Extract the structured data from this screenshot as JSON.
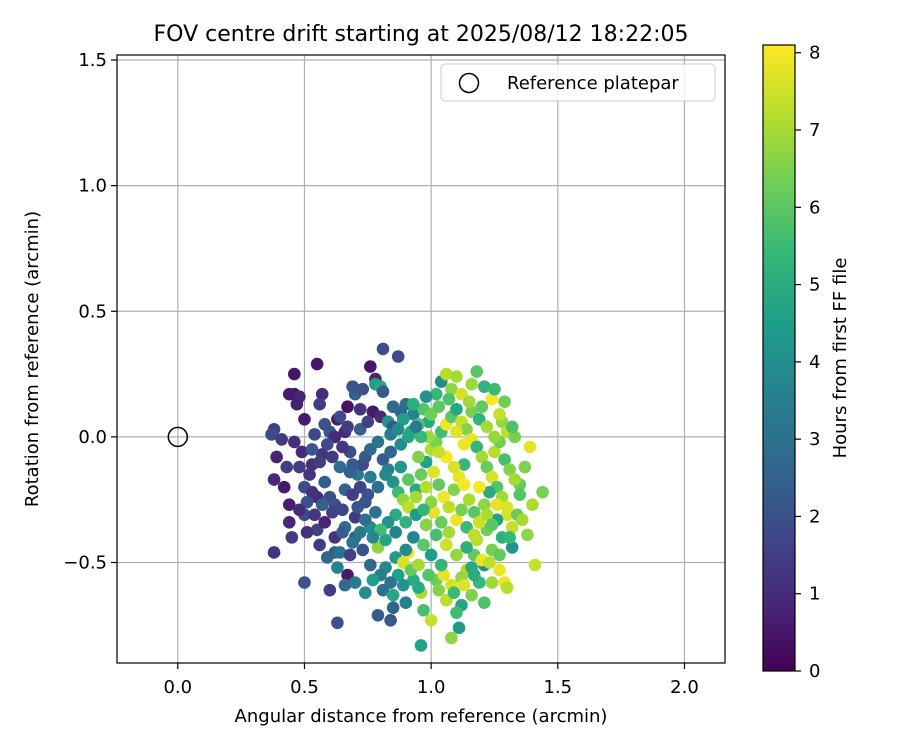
{
  "chart_data": {
    "type": "scatter",
    "title": "FOV centre drift starting at 2025/08/12 18:22:05",
    "xlabel": "Angular distance from reference (arcmin)",
    "ylabel": "Rotation from reference (arcmin)",
    "xlim": [
      -0.24,
      2.16
    ],
    "ylim": [
      -0.9,
      1.52
    ],
    "xticks": [
      0.0,
      0.5,
      1.0,
      1.5,
      2.0
    ],
    "xtick_labels": [
      "0.0",
      "0.5",
      "1.0",
      "1.5",
      "2.0"
    ],
    "yticks": [
      -0.5,
      0.0,
      0.5,
      1.0,
      1.5
    ],
    "ytick_labels": [
      "−0.5",
      "0.0",
      "0.5",
      "1.0",
      "1.5"
    ],
    "grid": true,
    "legend": {
      "position": "top-right",
      "entries": [
        "Reference platepar"
      ]
    },
    "reference_point": {
      "x": 0.0,
      "y": 0.0
    },
    "colorbar": {
      "label": "Hours from first FF file",
      "range": [
        0,
        8.1
      ],
      "ticks": [
        0,
        1,
        2,
        3,
        4,
        5,
        6,
        7,
        8
      ],
      "tick_labels": [
        "0",
        "1",
        "2",
        "3",
        "4",
        "5",
        "6",
        "7",
        "8"
      ],
      "colormap": "viridis"
    },
    "points": [
      [
        0.46,
        0.25,
        0.5
      ],
      [
        0.55,
        0.29,
        0.5
      ],
      [
        0.46,
        0.17,
        0.4
      ],
      [
        0.44,
        0.17,
        0.6
      ],
      [
        0.48,
        0.16,
        0.8
      ],
      [
        0.47,
        0.13,
        0.7
      ],
      [
        0.57,
        0.17,
        1.0
      ],
      [
        0.56,
        0.13,
        1.5
      ],
      [
        0.5,
        0.07,
        0.6
      ],
      [
        0.38,
        0.03,
        1.6
      ],
      [
        0.37,
        0.01,
        1.8
      ],
      [
        0.41,
        -0.01,
        1.4
      ],
      [
        0.39,
        -0.08,
        0.8
      ],
      [
        0.38,
        -0.17,
        0.9
      ],
      [
        0.42,
        -0.2,
        0.6
      ],
      [
        0.44,
        -0.34,
        0.9
      ],
      [
        0.45,
        -0.4,
        1.4
      ],
      [
        0.38,
        -0.46,
        1.2
      ],
      [
        0.44,
        -0.27,
        0.7
      ],
      [
        0.5,
        -0.31,
        1.8
      ],
      [
        0.54,
        -0.31,
        1.3
      ],
      [
        0.55,
        -0.37,
        1.6
      ],
      [
        0.51,
        -0.38,
        1.1
      ],
      [
        0.5,
        -0.2,
        1.9
      ],
      [
        0.48,
        -0.12,
        1.4
      ],
      [
        0.53,
        -0.11,
        1.1
      ],
      [
        0.57,
        -0.07,
        1.2
      ],
      [
        0.6,
        0.02,
        2.2
      ],
      [
        0.63,
        0.07,
        0.6
      ],
      [
        0.64,
        0.08,
        1.8
      ],
      [
        0.66,
        0.02,
        1.0
      ],
      [
        0.67,
        0.12,
        0.4
      ],
      [
        0.7,
        0.17,
        2.5
      ],
      [
        0.73,
        0.19,
        2.0
      ],
      [
        0.69,
        0.2,
        2.2
      ],
      [
        0.72,
        0.11,
        1.2
      ],
      [
        0.76,
        0.28,
        0.5
      ],
      [
        0.78,
        0.23,
        0.8
      ],
      [
        0.81,
        0.35,
        1.8
      ],
      [
        0.87,
        0.32,
        1.9
      ],
      [
        0.78,
        0.21,
        4.4
      ],
      [
        0.8,
        0.2,
        4.8
      ],
      [
        0.81,
        0.18,
        2.3
      ],
      [
        0.77,
        0.1,
        0.6
      ],
      [
        0.8,
        0.08,
        1.0
      ],
      [
        0.83,
        0.06,
        4.1
      ],
      [
        0.85,
        0.04,
        2.2
      ],
      [
        0.88,
        0.1,
        2.6
      ],
      [
        0.9,
        0.13,
        3.0
      ],
      [
        0.93,
        0.09,
        3.6
      ],
      [
        0.97,
        0.11,
        5.9
      ],
      [
        0.99,
        0.06,
        4.9
      ],
      [
        1.04,
        0.22,
        3.9
      ],
      [
        1.06,
        0.25,
        7.2
      ],
      [
        1.1,
        0.24,
        7.0
      ],
      [
        1.08,
        0.19,
        6.7
      ],
      [
        1.12,
        0.17,
        7.6
      ],
      [
        1.18,
        0.26,
        6.0
      ],
      [
        1.21,
        0.2,
        5.2
      ],
      [
        1.24,
        0.15,
        8.0
      ],
      [
        1.28,
        0.06,
        6.8
      ],
      [
        1.3,
        0.02,
        7.3
      ],
      [
        1.33,
        0.0,
        6.4
      ],
      [
        1.39,
        -0.04,
        7.8
      ],
      [
        1.44,
        -0.22,
        6.4
      ],
      [
        1.4,
        -0.27,
        7.1
      ],
      [
        1.35,
        -0.19,
        6.1
      ],
      [
        1.38,
        -0.39,
        6.7
      ],
      [
        1.41,
        -0.51,
        7.4
      ],
      [
        1.32,
        -0.44,
        4.2
      ],
      [
        1.29,
        -0.58,
        7.9
      ],
      [
        1.3,
        -0.6,
        7.2
      ],
      [
        1.27,
        -0.53,
        7.9
      ],
      [
        1.21,
        -0.51,
        4.0
      ],
      [
        1.21,
        -0.66,
        5.8
      ],
      [
        1.16,
        -0.63,
        6.5
      ],
      [
        1.12,
        -0.67,
        4.8
      ],
      [
        1.1,
        -0.7,
        5.6
      ],
      [
        1.11,
        -0.76,
        4.4
      ],
      [
        1.08,
        -0.8,
        6.7
      ],
      [
        1.0,
        -0.73,
        7.4
      ],
      [
        0.97,
        -0.69,
        5.7
      ],
      [
        0.96,
        -0.62,
        7.1
      ],
      [
        0.95,
        -0.6,
        4.9
      ],
      [
        0.9,
        -0.66,
        3.5
      ],
      [
        0.85,
        -0.68,
        2.6
      ],
      [
        0.84,
        -0.73,
        2.2
      ],
      [
        0.79,
        -0.71,
        2.3
      ],
      [
        0.63,
        -0.74,
        2.0
      ],
      [
        0.6,
        -0.61,
        1.5
      ],
      [
        0.5,
        -0.58,
        2.1
      ],
      [
        0.67,
        -0.55,
        0.6
      ],
      [
        0.62,
        -0.46,
        2.4
      ],
      [
        0.64,
        -0.46,
        3.0
      ],
      [
        0.68,
        -0.47,
        1.6
      ],
      [
        0.7,
        -0.4,
        2.5
      ],
      [
        0.72,
        -0.38,
        3.3
      ],
      [
        0.76,
        -0.36,
        4.0
      ],
      [
        0.79,
        -0.44,
        6.7
      ],
      [
        0.82,
        -0.52,
        3.8
      ],
      [
        0.86,
        -0.48,
        4.3
      ],
      [
        0.89,
        -0.5,
        7.6
      ],
      [
        0.91,
        -0.46,
        7.9
      ],
      [
        0.93,
        -0.57,
        5.0
      ],
      [
        0.96,
        -0.83,
        4.6
      ],
      [
        1.02,
        -0.57,
        6.3
      ],
      [
        1.05,
        -0.55,
        7.8
      ],
      [
        1.14,
        -0.53,
        7.1
      ],
      [
        1.19,
        -0.58,
        5.4
      ],
      [
        1.24,
        -0.58,
        6.9
      ],
      [
        1.17,
        -0.47,
        6.1
      ],
      [
        1.3,
        -0.31,
        7.6
      ],
      [
        0.58,
        -0.18,
        2.4
      ],
      [
        0.6,
        -0.24,
        1.9
      ],
      [
        0.62,
        -0.27,
        2.0
      ],
      [
        0.65,
        -0.29,
        1.7
      ],
      [
        0.66,
        -0.21,
        2.6
      ],
      [
        0.69,
        -0.23,
        1.5
      ],
      [
        0.71,
        -0.15,
        3.2
      ],
      [
        0.73,
        -0.11,
        1.8
      ],
      [
        0.74,
        -0.08,
        2.2
      ],
      [
        0.76,
        -0.05,
        2.7
      ],
      [
        0.79,
        -0.02,
        3.1
      ],
      [
        0.81,
        -0.09,
        2.3
      ],
      [
        0.83,
        -0.13,
        3.5
      ],
      [
        0.85,
        -0.18,
        4.2
      ],
      [
        0.87,
        -0.22,
        5.5
      ],
      [
        0.89,
        -0.25,
        6.8
      ],
      [
        0.91,
        -0.28,
        7.3
      ],
      [
        0.94,
        -0.21,
        5.0
      ],
      [
        0.96,
        -0.15,
        6.2
      ],
      [
        0.98,
        -0.1,
        4.6
      ],
      [
        1.0,
        -0.05,
        7.1
      ],
      [
        1.02,
        -0.02,
        6.4
      ],
      [
        1.04,
        0.02,
        5.6
      ],
      [
        1.06,
        0.05,
        7.9
      ],
      [
        1.08,
        0.08,
        6.0
      ],
      [
        1.1,
        0.11,
        4.8
      ],
      [
        1.12,
        0.06,
        7.4
      ],
      [
        1.14,
        0.03,
        6.6
      ],
      [
        1.16,
        -0.01,
        7.8
      ],
      [
        1.18,
        -0.04,
        5.3
      ],
      [
        1.2,
        -0.08,
        7.0
      ],
      [
        1.22,
        -0.12,
        6.2
      ],
      [
        1.24,
        -0.16,
        7.6
      ],
      [
        1.26,
        -0.2,
        5.9
      ],
      [
        1.28,
        -0.24,
        6.9
      ],
      [
        1.3,
        -0.28,
        7.7
      ],
      [
        1.26,
        -0.33,
        4.6
      ],
      [
        1.22,
        -0.37,
        6.3
      ],
      [
        1.18,
        -0.41,
        7.2
      ],
      [
        1.14,
        -0.44,
        5.1
      ],
      [
        1.1,
        -0.47,
        6.8
      ],
      [
        1.06,
        -0.43,
        7.5
      ],
      [
        1.02,
        -0.39,
        5.7
      ],
      [
        0.98,
        -0.35,
        6.6
      ],
      [
        0.94,
        -0.31,
        4.4
      ],
      [
        0.9,
        -0.34,
        5.2
      ],
      [
        0.86,
        -0.38,
        3.6
      ],
      [
        0.82,
        -0.41,
        4.7
      ],
      [
        0.78,
        -0.3,
        3.0
      ],
      [
        0.74,
        -0.26,
        2.1
      ],
      [
        0.7,
        -0.32,
        1.4
      ],
      [
        0.66,
        -0.36,
        2.8
      ],
      [
        0.62,
        -0.4,
        1.2
      ],
      [
        0.58,
        -0.34,
        0.8
      ],
      [
        0.55,
        -0.24,
        1.0
      ],
      [
        0.52,
        -0.15,
        1.3
      ],
      [
        0.49,
        -0.06,
        0.9
      ],
      [
        0.46,
        -0.02,
        1.1
      ],
      [
        0.43,
        -0.12,
        1.5
      ],
      [
        0.54,
        0.01,
        1.7
      ],
      [
        0.58,
        0.05,
        2.0
      ],
      [
        0.61,
        -0.08,
        1.4
      ],
      [
        0.64,
        -0.12,
        2.9
      ],
      [
        0.68,
        -0.06,
        1.9
      ],
      [
        0.72,
        0.03,
        2.4
      ],
      [
        0.75,
        0.06,
        1.6
      ],
      [
        0.84,
        0.01,
        3.3
      ],
      [
        0.88,
        -0.03,
        4.0
      ],
      [
        0.92,
        0.02,
        4.9
      ],
      [
        0.95,
        0.05,
        5.8
      ],
      [
        0.99,
        0.0,
        6.9
      ],
      [
        1.01,
        -0.14,
        7.7
      ],
      [
        1.03,
        -0.19,
        6.1
      ],
      [
        1.05,
        -0.24,
        7.9
      ],
      [
        1.07,
        -0.28,
        7.3
      ],
      [
        1.09,
        -0.21,
        6.5
      ],
      [
        1.11,
        -0.16,
        7.8
      ],
      [
        1.13,
        -0.11,
        5.4
      ],
      [
        1.15,
        -0.25,
        7.1
      ],
      [
        1.17,
        -0.3,
        6.0
      ],
      [
        1.19,
        -0.34,
        7.5
      ],
      [
        1.21,
        -0.27,
        6.7
      ],
      [
        1.23,
        -0.22,
        5.0
      ],
      [
        1.25,
        -0.06,
        7.2
      ],
      [
        1.27,
        -0.02,
        6.3
      ],
      [
        1.29,
        -0.09,
        5.7
      ],
      [
        1.31,
        -0.13,
        6.6
      ],
      [
        1.33,
        -0.17,
        7.0
      ],
      [
        1.35,
        -0.23,
        5.9
      ],
      [
        1.34,
        -0.31,
        6.2
      ],
      [
        1.32,
        -0.36,
        7.4
      ],
      [
        1.28,
        -0.4,
        5.1
      ],
      [
        1.24,
        -0.45,
        6.4
      ],
      [
        1.2,
        -0.49,
        7.9
      ],
      [
        1.16,
        -0.52,
        4.9
      ],
      [
        1.12,
        -0.56,
        6.8
      ],
      [
        1.08,
        -0.59,
        7.6
      ],
      [
        1.04,
        -0.51,
        5.3
      ],
      [
        1.0,
        -0.47,
        4.5
      ],
      [
        0.97,
        -0.43,
        6.0
      ],
      [
        0.93,
        -0.4,
        3.7
      ],
      [
        0.9,
        -0.45,
        3.9
      ],
      [
        0.87,
        -0.55,
        4.6
      ],
      [
        0.84,
        -0.58,
        3.2
      ],
      [
        0.8,
        -0.55,
        3.4
      ],
      [
        0.76,
        -0.51,
        2.7
      ],
      [
        0.73,
        -0.45,
        2.0
      ],
      [
        0.69,
        -0.42,
        3.1
      ],
      [
        0.65,
        -0.38,
        2.3
      ],
      [
        0.61,
        -0.3,
        1.6
      ],
      [
        0.57,
        -0.27,
        2.5
      ],
      [
        0.53,
        -0.22,
        1.2
      ],
      [
        0.85,
        0.12,
        2.8
      ],
      [
        0.89,
        0.07,
        4.5
      ],
      [
        0.93,
        0.13,
        5.1
      ],
      [
        0.96,
        0.0,
        5.5
      ],
      [
        1.0,
        0.09,
        6.3
      ],
      [
        1.03,
        0.12,
        6.0
      ],
      [
        1.07,
        0.15,
        5.8
      ],
      [
        1.1,
        0.02,
        7.7
      ],
      [
        1.13,
        -0.03,
        7.9
      ],
      [
        1.16,
        0.1,
        6.4
      ],
      [
        1.19,
        0.07,
        5.2
      ],
      [
        1.22,
        0.04,
        7.0
      ],
      [
        1.25,
        0.0,
        6.8
      ],
      [
        1.27,
        0.09,
        7.4
      ],
      [
        1.2,
        0.12,
        6.1
      ],
      [
        1.15,
        0.14,
        6.9
      ],
      [
        0.95,
        -0.08,
        6.5
      ],
      [
        0.98,
        -0.2,
        7.2
      ],
      [
        1.01,
        -0.3,
        7.8
      ],
      [
        1.04,
        -0.34,
        6.2
      ],
      [
        1.07,
        -0.38,
        7.0
      ],
      [
        1.1,
        -0.33,
        7.9
      ],
      [
        1.12,
        -0.29,
        6.4
      ],
      [
        1.14,
        -0.36,
        5.5
      ],
      [
        1.17,
        -0.39,
        7.3
      ],
      [
        1.19,
        -0.2,
        8.0
      ],
      [
        1.22,
        -0.31,
        7.1
      ],
      [
        1.24,
        -0.35,
        6.0
      ],
      [
        1.26,
        -0.27,
        7.8
      ],
      [
        1.13,
        -0.19,
        8.0
      ],
      [
        1.09,
        -0.12,
        7.6
      ],
      [
        1.06,
        -0.08,
        8.0
      ],
      [
        1.03,
        -0.06,
        7.4
      ],
      [
        1.0,
        -0.26,
        6.7
      ],
      [
        0.97,
        -0.29,
        5.3
      ],
      [
        0.94,
        -0.24,
        7.0
      ],
      [
        0.91,
        -0.17,
        6.0
      ],
      [
        0.88,
        -0.12,
        4.3
      ],
      [
        0.86,
        -0.31,
        5.0
      ],
      [
        0.83,
        -0.34,
        4.1
      ],
      [
        0.8,
        -0.37,
        5.6
      ],
      [
        0.77,
        -0.4,
        3.8
      ],
      [
        0.74,
        -0.33,
        2.9
      ],
      [
        0.71,
        -0.28,
        2.2
      ],
      [
        0.68,
        -0.14,
        2.6
      ],
      [
        0.65,
        -0.04,
        1.3
      ],
      [
        0.62,
        0.0,
        0.9
      ],
      [
        0.59,
        -0.03,
        1.8
      ],
      [
        0.56,
        -0.1,
        1.5
      ],
      [
        0.53,
        -0.05,
        2.2
      ],
      [
        0.51,
        -0.26,
        2.0
      ],
      [
        0.48,
        -0.29,
        1.0
      ],
      [
        0.56,
        -0.43,
        1.4
      ],
      [
        0.59,
        -0.48,
        2.6
      ],
      [
        0.63,
        -0.52,
        3.6
      ],
      [
        0.66,
        -0.59,
        2.8
      ],
      [
        0.7,
        -0.58,
        3.3
      ],
      [
        0.74,
        -0.62,
        4.0
      ],
      [
        0.77,
        -0.57,
        4.5
      ],
      [
        0.81,
        -0.61,
        3.0
      ],
      [
        0.85,
        -0.63,
        4.8
      ],
      [
        0.89,
        -0.59,
        4.2
      ],
      [
        0.92,
        -0.53,
        6.1
      ],
      [
        0.95,
        -0.51,
        7.0
      ],
      [
        0.99,
        -0.55,
        5.9
      ],
      [
        1.03,
        -0.61,
        6.6
      ],
      [
        1.06,
        -0.65,
        7.3
      ],
      [
        1.09,
        -0.62,
        5.5
      ],
      [
        1.13,
        -0.59,
        7.7
      ],
      [
        1.17,
        -0.55,
        5.0
      ],
      [
        1.23,
        -0.5,
        7.3
      ],
      [
        1.27,
        -0.47,
        6.1
      ],
      [
        1.31,
        -0.4,
        5.4
      ],
      [
        1.36,
        -0.33,
        7.0
      ],
      [
        1.37,
        -0.12,
        6.5
      ],
      [
        1.32,
        0.04,
        5.8
      ],
      [
        1.29,
        0.14,
        6.3
      ],
      [
        1.25,
        0.19,
        5.5
      ],
      [
        1.16,
        0.21,
        6.9
      ],
      [
        1.02,
        0.17,
        5.4
      ],
      [
        0.98,
        0.16,
        4.1
      ],
      [
        0.94,
        0.04,
        3.3
      ],
      [
        0.91,
        0.0,
        4.7
      ],
      [
        0.87,
        0.03,
        3.9
      ],
      [
        0.84,
        -0.06,
        2.6
      ],
      [
        0.82,
        -0.15,
        3.8
      ],
      [
        0.79,
        -0.2,
        2.9
      ],
      [
        0.76,
        -0.16,
        3.5
      ],
      [
        0.75,
        -0.23,
        2.0
      ],
      [
        0.72,
        -0.2,
        1.7
      ],
      [
        0.69,
        -0.11,
        2.3
      ],
      [
        0.67,
        0.04,
        1.5
      ]
    ]
  }
}
